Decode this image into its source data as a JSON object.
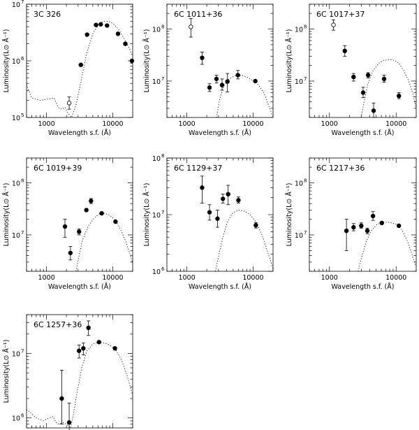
{
  "figure": {
    "xlabel": "Wavelength s.f. (Å)",
    "ylabel": "Luminosity(L⊙ Å⁻¹)"
  },
  "chart_data": [
    {
      "type": "scatter",
      "title": "3C 326",
      "xlabel": "Wavelength s.f. (Å)",
      "ylabel": "Luminosity(L⊙ Å⁻¹)",
      "xscale": "log",
      "yscale": "log",
      "xlim": [
        500,
        20000
      ],
      "ylim": [
        100000,
        10000000
      ],
      "x_ticks": [
        {
          "v": 1000,
          "t": "1000"
        },
        {
          "v": 10000,
          "t": "10000"
        }
      ],
      "y_ticks": [
        {
          "v": 100000,
          "t": "10"
        },
        {
          "v": 1000000,
          "t": "10"
        },
        {
          "v": 10000000,
          "t": "10"
        }
      ],
      "y_ticks_exp": [
        "5",
        "6",
        "7"
      ],
      "points": [
        {
          "x": 2200,
          "y": 180000,
          "yerr": [
            140000,
            230000
          ],
          "filled": false
        },
        {
          "x": 3300,
          "y": 850000,
          "filled": true
        },
        {
          "x": 4100,
          "y": 2900000,
          "filled": true
        },
        {
          "x": 5600,
          "y": 4300000,
          "filled": true
        },
        {
          "x": 6600,
          "y": 4400000,
          "filled": true
        },
        {
          "x": 8200,
          "y": 4200000,
          "filled": true
        },
        {
          "x": 12000,
          "y": 3000000,
          "filled": true
        },
        {
          "x": 15500,
          "y": 2000000,
          "filled": true
        },
        {
          "x": 19500,
          "y": 1000000,
          "filled": true
        }
      ],
      "model": [
        [
          500,
          380000
        ],
        [
          600,
          220000
        ],
        [
          800,
          200000
        ],
        [
          1000,
          210000
        ],
        [
          1300,
          220000
        ],
        [
          1500,
          150000
        ],
        [
          1700,
          140000
        ],
        [
          1900,
          150000
        ],
        [
          2100,
          120000
        ],
        [
          2400,
          100000
        ],
        [
          2800,
          170000
        ],
        [
          3300,
          420000
        ],
        [
          4000,
          1300000
        ],
        [
          5000,
          3000000
        ],
        [
          6000,
          4300000
        ],
        [
          7000,
          4900000
        ],
        [
          8500,
          5000000
        ],
        [
          10000,
          4600000
        ],
        [
          12000,
          3700000
        ],
        [
          14000,
          2800000
        ],
        [
          16000,
          2100000
        ],
        [
          18000,
          1600000
        ],
        [
          20000,
          1200000
        ]
      ]
    },
    {
      "type": "scatter",
      "title": "6C 1011+36",
      "xlabel": "Wavelength s.f. (Å)",
      "ylabel": "Luminosity(L⊙ Å⁻¹)",
      "xscale": "log",
      "yscale": "log",
      "xlim": [
        500,
        20000
      ],
      "ylim": [
        2000000,
        300000000
      ],
      "x_ticks": [
        {
          "v": 1000,
          "t": "1000"
        },
        {
          "v": 10000,
          "t": "10000"
        }
      ],
      "y_ticks": [
        {
          "v": 10000000,
          "t": "10"
        },
        {
          "v": 100000000,
          "t": "10"
        }
      ],
      "y_ticks_exp": [
        "7",
        "8"
      ],
      "points": [
        {
          "x": 1150,
          "y": 110000000,
          "yerr": [
            70000000,
            160000000
          ],
          "filled": false
        },
        {
          "x": 1700,
          "y": 28000000,
          "yerr": [
            21000000,
            36000000
          ],
          "filled": true
        },
        {
          "x": 2200,
          "y": 7500000,
          "yerr": [
            6300000,
            8900000
          ],
          "filled": true
        },
        {
          "x": 2800,
          "y": 11000000,
          "yerr": [
            9200000,
            13000000
          ],
          "filled": true
        },
        {
          "x": 3400,
          "y": 8400000,
          "yerr": [
            6700000,
            11000000
          ],
          "filled": true
        },
        {
          "x": 4100,
          "y": 9800000,
          "yerr": [
            6200000,
            14000000
          ],
          "filled": true
        },
        {
          "x": 5900,
          "y": 13000000,
          "yerr": [
            11000000,
            16000000
          ],
          "filled": true
        },
        {
          "x": 10800,
          "y": 10000000,
          "filled": true
        }
      ],
      "model": [
        [
          2800,
          2000000
        ],
        [
          3100,
          4200000
        ],
        [
          3600,
          8000000
        ],
        [
          4300,
          11000000
        ],
        [
          5200,
          12500000
        ],
        [
          6000,
          13000000
        ],
        [
          7000,
          12800000
        ],
        [
          8500,
          11500000
        ],
        [
          10000,
          10200000
        ],
        [
          12000,
          8500000
        ],
        [
          14500,
          6000000
        ],
        [
          17000,
          3500000
        ],
        [
          19500,
          2200000
        ]
      ]
    },
    {
      "type": "scatter",
      "title": "6C 1017+37",
      "xlabel": "Wavelength s.f. (Å)",
      "ylabel": "Luminosity(L⊙ Å⁻¹)",
      "xscale": "log",
      "yscale": "log",
      "xlim": [
        500,
        20000
      ],
      "ylim": [
        2000000,
        300000000
      ],
      "x_ticks": [
        {
          "v": 1000,
          "t": "1000"
        },
        {
          "v": 10000,
          "t": "10000"
        }
      ],
      "y_ticks": [
        {
          "v": 10000000,
          "t": "10"
        },
        {
          "v": 100000000,
          "t": "10"
        }
      ],
      "y_ticks_exp": [
        "7",
        "8"
      ],
      "points": [
        {
          "x": 1150,
          "y": 120000000,
          "yerr": [
            95000000,
            150000000
          ],
          "filled": false
        },
        {
          "x": 1700,
          "y": 38000000,
          "yerr": [
            30000000,
            48000000
          ],
          "filled": true
        },
        {
          "x": 2300,
          "y": 12000000,
          "yerr": [
            10000000,
            14000000
          ],
          "filled": true
        },
        {
          "x": 3200,
          "y": 6000000,
          "yerr": [
            4800000,
            7600000
          ],
          "filled": true
        },
        {
          "x": 3800,
          "y": 13000000,
          "yerr": [
            11500000,
            14500000
          ],
          "filled": true
        },
        {
          "x": 4600,
          "y": 2700000,
          "yerr": [
            2000000,
            3800000
          ],
          "filled": true
        },
        {
          "x": 6600,
          "y": 11000000,
          "yerr": [
            9500000,
            13000000
          ],
          "filled": true
        },
        {
          "x": 11000,
          "y": 5200000,
          "yerr": [
            4600000,
            6000000
          ],
          "filled": true
        }
      ],
      "model": [
        [
          3000,
          2000000
        ],
        [
          3300,
          4000000
        ],
        [
          3800,
          9000000
        ],
        [
          4500,
          16000000
        ],
        [
          5500,
          22000000
        ],
        [
          6500,
          25000000
        ],
        [
          8000,
          26000000
        ],
        [
          9500,
          25000000
        ],
        [
          11000,
          22000000
        ],
        [
          13000,
          16000000
        ],
        [
          15500,
          10000000
        ],
        [
          18000,
          5500000
        ],
        [
          20000,
          3000000
        ]
      ]
    },
    {
      "type": "scatter",
      "title": "6C 1019+39",
      "xlabel": "Wavelength s.f. (Å)",
      "ylabel": "Luminosity(L⊙ Å⁻¹)",
      "xscale": "log",
      "yscale": "log",
      "xlim": [
        500,
        20000
      ],
      "ylim": [
        2000000,
        300000000
      ],
      "x_ticks": [
        {
          "v": 1000,
          "t": "1000"
        },
        {
          "v": 10000,
          "t": "10000"
        }
      ],
      "y_ticks": [
        {
          "v": 10000000,
          "t": "10"
        },
        {
          "v": 100000000,
          "t": "10"
        }
      ],
      "y_ticks_exp": [
        "7",
        "8"
      ],
      "points": [
        {
          "x": 1900,
          "y": 14500000,
          "yerr": [
            9000000,
            20000000
          ],
          "filled": true
        },
        {
          "x": 2300,
          "y": 4500000,
          "yerr": [
            3300000,
            6000000
          ],
          "filled": true
        },
        {
          "x": 3100,
          "y": 11500000,
          "yerr": [
            10000000,
            13000000
          ],
          "filled": true
        },
        {
          "x": 4000,
          "y": 30000000,
          "filled": true
        },
        {
          "x": 4700,
          "y": 45000000,
          "yerr": [
            40000000,
            50000000
          ],
          "filled": true
        },
        {
          "x": 6800,
          "y": 26000000,
          "filled": true
        },
        {
          "x": 11000,
          "y": 18000000,
          "filled": true
        }
      ],
      "model": [
        [
          2800,
          2000000
        ],
        [
          3100,
          4000000
        ],
        [
          3500,
          8000000
        ],
        [
          4200,
          14000000
        ],
        [
          5200,
          21000000
        ],
        [
          6200,
          25000000
        ],
        [
          7500,
          26000000
        ],
        [
          9000,
          24000000
        ],
        [
          11000,
          19000000
        ],
        [
          13500,
          12000000
        ],
        [
          16000,
          7000000
        ],
        [
          18500,
          4000000
        ],
        [
          20000,
          2800000
        ]
      ]
    },
    {
      "type": "scatter",
      "title": "6C 1129+37",
      "xlabel": "Wavelength s.f. (Å)",
      "ylabel": "Luminosity(L⊙ Å⁻¹)",
      "xscale": "log",
      "yscale": "log",
      "xlim": [
        500,
        20000
      ],
      "ylim": [
        1000000,
        100000000
      ],
      "x_ticks": [
        {
          "v": 1000,
          "t": "1000"
        },
        {
          "v": 10000,
          "t": "10000"
        }
      ],
      "y_ticks": [
        {
          "v": 1000000,
          "t": "10"
        },
        {
          "v": 10000000,
          "t": "10"
        },
        {
          "v": 100000000,
          "t": "10"
        }
      ],
      "y_ticks_exp": [
        "6",
        "7",
        "8"
      ],
      "points": [
        {
          "x": 1700,
          "y": 30000000,
          "yerr": [
            16000000,
            48000000
          ],
          "filled": true
        },
        {
          "x": 2200,
          "y": 11000000,
          "yerr": [
            8000000,
            15000000
          ],
          "filled": true
        },
        {
          "x": 2900,
          "y": 8500000,
          "yerr": [
            6000000,
            12000000
          ],
          "filled": true
        },
        {
          "x": 3500,
          "y": 19000000,
          "yerr": [
            16000000,
            23000000
          ],
          "filled": true
        },
        {
          "x": 4200,
          "y": 23000000,
          "yerr": [
            15000000,
            33000000
          ],
          "filled": true
        },
        {
          "x": 6000,
          "y": 18000000,
          "yerr": [
            16000000,
            20500000
          ],
          "filled": true
        },
        {
          "x": 11000,
          "y": 6500000,
          "yerr": [
            5800000,
            7200000
          ],
          "filled": true
        }
      ],
      "model": [
        [
          2700,
          1000000
        ],
        [
          3000,
          1800000
        ],
        [
          3400,
          3500000
        ],
        [
          4000,
          7000000
        ],
        [
          4800,
          10500000
        ],
        [
          6000,
          12000000
        ],
        [
          7500,
          11500000
        ],
        [
          9000,
          10000000
        ],
        [
          11000,
          7500000
        ],
        [
          13500,
          4500000
        ],
        [
          16000,
          2500000
        ],
        [
          18500,
          1500000
        ],
        [
          20000,
          1100000
        ]
      ]
    },
    {
      "type": "scatter",
      "title": "6C 1217+36",
      "xlabel": "Wavelength s.f. (Å)",
      "ylabel": "Luminosity(L⊙ Å⁻¹)",
      "xscale": "log",
      "yscale": "log",
      "xlim": [
        500,
        20000
      ],
      "ylim": [
        2000000,
        300000000
      ],
      "x_ticks": [
        {
          "v": 1000,
          "t": "1000"
        },
        {
          "v": 10000,
          "t": "10000"
        }
      ],
      "y_ticks": [
        {
          "v": 10000000,
          "t": "10"
        },
        {
          "v": 100000000,
          "t": "10"
        }
      ],
      "y_ticks_exp": [
        "7",
        "8"
      ],
      "points": [
        {
          "x": 1800,
          "y": 12000000,
          "yerr": [
            5000000,
            20000000
          ],
          "filled": true
        },
        {
          "x": 2300,
          "y": 14000000,
          "yerr": [
            12000000,
            16500000
          ],
          "filled": true
        },
        {
          "x": 3000,
          "y": 15000000,
          "yerr": [
            13500000,
            17000000
          ],
          "filled": true
        },
        {
          "x": 3700,
          "y": 12000000,
          "yerr": [
            10500000,
            13500000
          ],
          "filled": true
        },
        {
          "x": 4500,
          "y": 23000000,
          "yerr": [
            19000000,
            28000000
          ],
          "filled": true
        },
        {
          "x": 6100,
          "y": 17000000,
          "filled": true
        },
        {
          "x": 11000,
          "y": 15000000,
          "filled": true
        }
      ],
      "model": [
        [
          2700,
          2000000
        ],
        [
          3000,
          3500000
        ],
        [
          3500,
          7000000
        ],
        [
          4200,
          12000000
        ],
        [
          5200,
          16000000
        ],
        [
          6500,
          17500000
        ],
        [
          8000,
          17500000
        ],
        [
          10000,
          16000000
        ],
        [
          12000,
          13000000
        ],
        [
          14500,
          8000000
        ],
        [
          17000,
          4500000
        ],
        [
          19500,
          2600000
        ]
      ]
    },
    {
      "type": "scatter",
      "title": "6C 1257+36",
      "xlabel": "Wavelength s.f. (Å)",
      "ylabel": "Luminosity(L⊙ Å⁻¹)",
      "xscale": "log",
      "yscale": "log",
      "xlim": [
        500,
        20000
      ],
      "ylim": [
        700000,
        40000000
      ],
      "x_ticks": [
        {
          "v": 1000,
          "t": "1000"
        },
        {
          "v": 10000,
          "t": "10000"
        }
      ],
      "y_ticks": [
        {
          "v": 1000000,
          "t": "10"
        },
        {
          "v": 10000000,
          "t": "10"
        }
      ],
      "y_ticks_exp": [
        "6",
        "7"
      ],
      "points": [
        {
          "x": 1700,
          "y": 2000000,
          "yerr": [
            800000,
            5500000
          ],
          "filled": true
        },
        {
          "x": 2200,
          "y": 850000,
          "yerr": [
            500000,
            1700000
          ],
          "filled": true
        },
        {
          "x": 3100,
          "y": 11000000,
          "yerr": [
            8500000,
            13500000
          ],
          "filled": true
        },
        {
          "x": 3600,
          "y": 12000000,
          "yerr": [
            9500000,
            14500000
          ],
          "filled": true
        },
        {
          "x": 4300,
          "y": 25000000,
          "yerr": [
            19000000,
            32000000
          ],
          "filled": true
        },
        {
          "x": 6200,
          "y": 15000000,
          "filled": true
        },
        {
          "x": 10800,
          "y": 12000000,
          "filled": true
        }
      ],
      "model": [
        [
          500,
          1350000
        ],
        [
          700,
          1000000
        ],
        [
          900,
          900000
        ],
        [
          1100,
          1000000
        ],
        [
          1250,
          1050000
        ],
        [
          1400,
          850000
        ],
        [
          1550,
          800000
        ],
        [
          1750,
          850000
        ],
        [
          2000,
          800000
        ],
        [
          2300,
          700000
        ],
        [
          2500,
          1000000
        ],
        [
          2900,
          2500000
        ],
        [
          3400,
          6000000
        ],
        [
          4100,
          11000000
        ],
        [
          5000,
          14000000
        ],
        [
          6000,
          15000000
        ],
        [
          7500,
          14500000
        ],
        [
          9000,
          13500000
        ],
        [
          11000,
          11500000
        ],
        [
          13500,
          8000000
        ],
        [
          16000,
          5000000
        ],
        [
          18500,
          3000000
        ],
        [
          20000,
          2200000
        ]
      ]
    }
  ]
}
